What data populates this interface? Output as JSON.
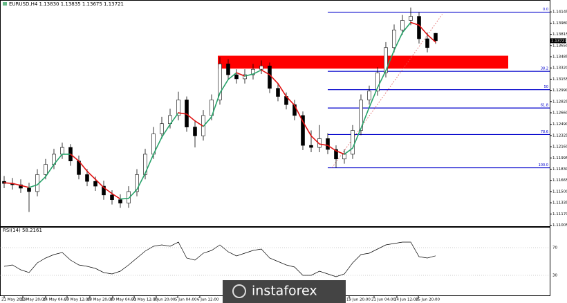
{
  "chart_data": {
    "type": "candlestick",
    "title": "EURUSD,H4  1.13830 1.13835 1.13675 1.13721",
    "ylim": [
      1.1099,
      1.143
    ],
    "yticks": [
      1.14145,
      {
        "value": 1.1398,
        "label": "1.13980"
      },
      1.13815,
      {
        "value": 1.1365,
        "label": "1.13650"
      },
      1.13485,
      {
        "value": 1.1332,
        "label": "1.13320"
      },
      1.13155,
      {
        "value": 1.1299,
        "label": "1.12990"
      },
      1.12825,
      {
        "value": 1.1266,
        "label": "1.12660"
      },
      {
        "value": 1.1249,
        "label": "1.12490"
      },
      1.12325,
      {
        "value": 1.1216,
        "label": "1.12160"
      },
      1.11995,
      {
        "value": 1.1183,
        "label": "1.11830"
      },
      1.11665,
      {
        "value": 1.115,
        "label": "1.11500"
      },
      1.11335,
      {
        "value": 1.1117,
        "label": "1.11170"
      },
      1.11005
    ],
    "xlim": [
      -0.5,
      65.75
    ],
    "xticks": [
      {
        "value": 0,
        "label": "21 May 2019"
      },
      {
        "value": 2.25,
        "label": "22 May 20:00"
      },
      {
        "value": 5,
        "label": "24 May 04:00"
      },
      {
        "value": 7.58,
        "label": "27 May 12:00"
      },
      {
        "value": 10.33,
        "label": "28 May 20:00"
      },
      {
        "value": 13.08,
        "label": "30 May 04:00"
      },
      {
        "value": 15.67,
        "label": "31 May 12:00"
      },
      {
        "value": 18.33,
        "label": "3 Jun 20:00"
      },
      {
        "value": 20.92,
        "label": "5 Jun 04:00"
      },
      {
        "value": 23.58,
        "label": "6 Jun 12:00"
      },
      {
        "value": 41.58,
        "label": "19 Jun 20:00"
      },
      {
        "value": 44.58,
        "label": "21 Jun 04:00"
      },
      {
        "value": 47.33,
        "label": "24 Jun 12:00"
      },
      {
        "value": 49.92,
        "label": "25 Jun 20:00"
      }
    ],
    "open": [
      1.1165,
      1.1162,
      1.116,
      1.1155,
      1.115,
      1.1175,
      1.119,
      1.1205,
      1.1215,
      1.1195,
      1.1175,
      1.1165,
      1.1158,
      1.1145,
      1.1138,
      1.1133,
      1.115,
      1.1175,
      1.1205,
      1.1235,
      1.125,
      1.1262,
      1.1285,
      1.1245,
      1.1232,
      1.1262,
      1.1285,
      1.1338,
      1.1322,
      1.1316,
      1.1322,
      1.133,
      1.1335,
      1.1302,
      1.129,
      1.1278,
      1.1262,
      1.1218,
      1.1215,
      1.1228,
      1.1212,
      1.1198,
      1.1205,
      1.124,
      1.1285,
      1.1298,
      1.1325,
      1.1362,
      1.1388,
      1.1402,
      1.1408,
      1.1375,
      1.1383
    ],
    "high": [
      1.1173,
      1.117,
      1.1168,
      1.1163,
      1.1183,
      1.1198,
      1.1213,
      1.1222,
      1.122,
      1.1203,
      1.1183,
      1.1172,
      1.1166,
      1.1152,
      1.1146,
      1.1158,
      1.1183,
      1.1213,
      1.1245,
      1.126,
      1.1272,
      1.1297,
      1.129,
      1.1255,
      1.127,
      1.1293,
      1.1348,
      1.1345,
      1.133,
      1.133,
      1.1338,
      1.1343,
      1.134,
      1.131,
      1.1296,
      1.1285,
      1.1268,
      1.124,
      1.1248,
      1.1236,
      1.1218,
      1.1212,
      1.1248,
      1.1293,
      1.1306,
      1.1333,
      1.137,
      1.1396,
      1.141,
      1.1421,
      1.1414,
      1.1384,
      1.13835
    ],
    "low": [
      1.1155,
      1.1153,
      1.1148,
      1.112,
      1.1143,
      1.1168,
      1.1183,
      1.1198,
      1.1188,
      1.1168,
      1.1158,
      1.1151,
      1.1138,
      1.1131,
      1.1126,
      1.1126,
      1.1143,
      1.1168,
      1.1198,
      1.1228,
      1.1243,
      1.1255,
      1.1238,
      1.1215,
      1.1225,
      1.1255,
      1.1278,
      1.1315,
      1.1309,
      1.1309,
      1.1315,
      1.1323,
      1.1295,
      1.1283,
      1.1271,
      1.1255,
      1.1211,
      1.1208,
      1.1208,
      1.1205,
      1.1185,
      1.1191,
      1.1198,
      1.1233,
      1.1278,
      1.1291,
      1.1318,
      1.1355,
      1.1381,
      1.1395,
      1.1368,
      1.1355,
      1.13675
    ],
    "close": [
      1.1162,
      1.116,
      1.1155,
      1.115,
      1.1175,
      1.119,
      1.1205,
      1.1215,
      1.1195,
      1.1175,
      1.1165,
      1.1158,
      1.1145,
      1.1138,
      1.1133,
      1.115,
      1.1175,
      1.1205,
      1.1235,
      1.125,
      1.1262,
      1.1285,
      1.1245,
      1.1232,
      1.1262,
      1.1285,
      1.1338,
      1.1322,
      1.1316,
      1.1322,
      1.133,
      1.1335,
      1.1302,
      1.129,
      1.1278,
      1.1262,
      1.1218,
      1.1215,
      1.1228,
      1.1212,
      1.1198,
      1.1205,
      1.124,
      1.1285,
      1.1298,
      1.1325,
      1.1362,
      1.1388,
      1.1402,
      1.1408,
      1.1375,
      1.1362,
      1.13721
    ],
    "last_price": 1.13721,
    "ma": {
      "up_color": "#26a269",
      "down_color": "#e01010",
      "values": [
        1.1163,
        1.1162,
        1.1159,
        1.1156,
        1.116,
        1.1172,
        1.119,
        1.1205,
        1.1205,
        1.1195,
        1.118,
        1.1168,
        1.1156,
        1.1147,
        1.1139,
        1.114,
        1.1153,
        1.1177,
        1.1205,
        1.123,
        1.1249,
        1.1266,
        1.1264,
        1.1254,
        1.1246,
        1.126,
        1.1295,
        1.1315,
        1.1325,
        1.132,
        1.1323,
        1.1329,
        1.1322,
        1.1309,
        1.129,
        1.1277,
        1.1253,
        1.1232,
        1.122,
        1.1218,
        1.121,
        1.1205,
        1.1214,
        1.1243,
        1.1274,
        1.1303,
        1.1328,
        1.1358,
        1.1384,
        1.1399,
        1.1395,
        1.1381,
        1.137
      ]
    },
    "fib": {
      "start": 39,
      "color": "#0000cc",
      "labels": [
        "0.0",
        "38.2",
        "50",
        "61.8",
        "78.6",
        "100.0"
      ],
      "prices": [
        1.1414,
        1.1327,
        1.13,
        1.1273,
        1.1234,
        1.1185
      ]
    },
    "zone": {
      "x": [
        25.75,
        60.75
      ],
      "y": [
        1.1331,
        1.135
      ],
      "color": "#ff0000"
    },
    "trendline": {
      "x": [
        39.5,
        52.8
      ],
      "y": [
        1.1185,
        1.1411
      ],
      "color": "#e06060"
    },
    "rsi": {
      "title": "RSI(14) 58.2161",
      "ylim": [
        0,
        100
      ],
      "yticks": [
        70,
        30
      ],
      "values": [
        43,
        45,
        38,
        34,
        48,
        55,
        60,
        63,
        52,
        45,
        43,
        40,
        34,
        32,
        36,
        45,
        55,
        65,
        72,
        74,
        72,
        78,
        55,
        52,
        62,
        66,
        74,
        64,
        58,
        62,
        66,
        68,
        55,
        50,
        45,
        42,
        30,
        30,
        36,
        32,
        28,
        32,
        48,
        60,
        62,
        68,
        74,
        76,
        78,
        78,
        57,
        55,
        58.2161
      ]
    },
    "watermark": "instaforex"
  }
}
